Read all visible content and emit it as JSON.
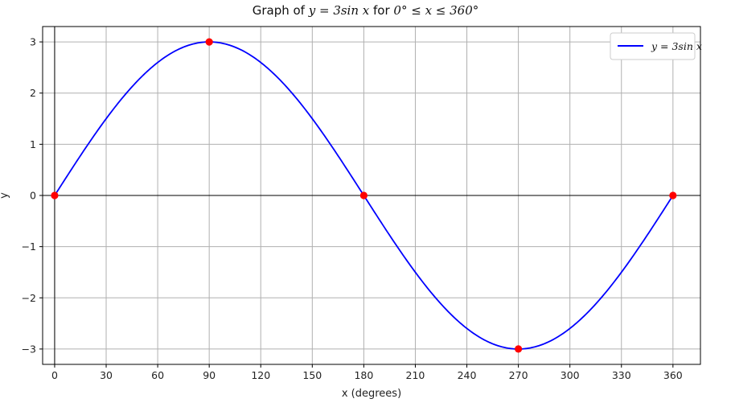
{
  "chart_data": {
    "type": "line",
    "title": {
      "prefix": "Graph of ",
      "expr": "y = 3sin x",
      "middle": " for ",
      "range": "0° ≤ x ≤ 360°"
    },
    "xlabel": "x (degrees)",
    "ylabel": "y",
    "xlim": [
      -7,
      376
    ],
    "ylim": [
      -3.3,
      3.3
    ],
    "xticks": [
      0,
      30,
      60,
      90,
      120,
      150,
      180,
      210,
      240,
      270,
      300,
      330,
      360
    ],
    "yticks": [
      -3,
      -2,
      -1,
      0,
      1,
      2,
      3
    ],
    "ytick_labels": [
      "−3",
      "−2",
      "−1",
      "0",
      "1",
      "2",
      "3"
    ],
    "grid": true,
    "legend_position": "top-right",
    "series": [
      {
        "name": "y = 3sin x",
        "color": "#0000ff",
        "function": "3*sin(x degrees)",
        "x": [
          0,
          15,
          30,
          45,
          60,
          75,
          90,
          105,
          120,
          135,
          150,
          165,
          180,
          195,
          210,
          225,
          240,
          255,
          270,
          285,
          300,
          315,
          330,
          345,
          360
        ],
        "y": [
          0,
          0.776,
          1.5,
          2.121,
          2.598,
          2.898,
          3,
          2.898,
          2.598,
          2.121,
          1.5,
          0.776,
          0,
          -0.776,
          -1.5,
          -2.121,
          -2.598,
          -2.898,
          -3,
          -2.898,
          -2.598,
          -2.121,
          -1.5,
          -0.776,
          0
        ]
      }
    ],
    "highlight_points": {
      "color": "#ff0000",
      "x": [
        0,
        90,
        180,
        270,
        360
      ],
      "y": [
        0,
        3,
        0,
        -3,
        0
      ]
    }
  }
}
